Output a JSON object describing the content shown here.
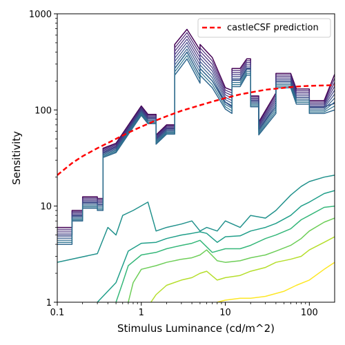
{
  "chart_data": {
    "type": "line",
    "xlabel": "Stimulus Luminance (cd/m^2)",
    "ylabel": "Sensitivity",
    "xscale": "log",
    "yscale": "log",
    "xlim": [
      0.1,
      200
    ],
    "ylim": [
      1,
      1000
    ],
    "x_ticks": [
      {
        "value": 0.1,
        "label": "0.1"
      },
      {
        "value": 1,
        "label": "1"
      },
      {
        "value": 10,
        "label": "10"
      },
      {
        "value": 100,
        "label": "100"
      }
    ],
    "y_ticks": [
      {
        "value": 1,
        "label": "1"
      },
      {
        "value": 10,
        "label": "10"
      },
      {
        "value": 100,
        "label": "100"
      },
      {
        "value": 1000,
        "label": "1000"
      }
    ],
    "legend": {
      "placement": "top-right",
      "entries": [
        {
          "label": "castleCSF prediction",
          "color": "#ff0000",
          "style": "dashed"
        }
      ]
    },
    "series": [
      {
        "name": "castleCSF prediction",
        "color": "#ff0000",
        "style": "dashed",
        "x": [
          0.1,
          0.15,
          0.2,
          0.3,
          0.5,
          0.7,
          1,
          1.5,
          2,
          3,
          5,
          7,
          10,
          15,
          20,
          30,
          50,
          70,
          100,
          150,
          200
        ],
        "y": [
          21,
          28,
          33,
          40,
          50,
          58,
          67,
          78,
          86,
          98,
          112,
          122,
          133,
          145,
          152,
          162,
          170,
          175,
          178,
          180,
          181
        ]
      }
    ],
    "contour_frontier": {
      "x": [
        0.1,
        0.15,
        0.15,
        0.2,
        0.2,
        0.3,
        0.3,
        0.35,
        0.35,
        0.5,
        1,
        1.2,
        1.5,
        1.5,
        2,
        2.5,
        2.5,
        3.5,
        5,
        5,
        7,
        10,
        12,
        12,
        15,
        18,
        20,
        20,
        25,
        25,
        40,
        40,
        60,
        70,
        100,
        100,
        150,
        200
      ],
      "y": [
        6,
        6,
        9,
        9,
        12.5,
        12.5,
        12,
        12,
        40,
        45,
        110,
        90,
        90,
        55,
        70,
        70,
        300,
        450,
        250,
        300,
        220,
        130,
        120,
        230,
        230,
        300,
        300,
        140,
        140,
        70,
        120,
        220,
        220,
        150,
        150,
        120,
        120,
        130
      ]
    },
    "contour_levels": [
      {
        "color": "#440154",
        "x": [
          0.1,
          0.15,
          0.15,
          0.2,
          0.2,
          0.3,
          0.3,
          0.35,
          0.35,
          0.5,
          1,
          1.2,
          1.5,
          1.5,
          2,
          2.5,
          2.5,
          3.5,
          5,
          5,
          7,
          10,
          12,
          12,
          15,
          18,
          20,
          20,
          25,
          25,
          40,
          40,
          60,
          70,
          100,
          100,
          150,
          200
        ],
        "y": [
          6,
          6,
          9,
          9,
          12.5,
          12.5,
          12,
          12,
          40,
          45,
          110,
          90,
          90,
          55,
          70,
          70,
          480,
          690,
          420,
          480,
          350,
          170,
          160,
          270,
          270,
          340,
          340,
          140,
          140,
          75,
          150,
          240,
          240,
          165,
          165,
          125,
          125,
          235
        ]
      },
      {
        "color": "#3e4a89",
        "x": [
          0.1,
          0.15,
          0.15,
          0.2,
          0.2,
          0.3,
          0.3,
          0.35,
          0.35,
          0.5,
          1,
          1.2,
          1.5,
          1.5,
          2,
          2.5,
          2.5,
          3.5,
          5,
          5,
          7,
          10,
          12,
          12,
          15,
          18,
          20,
          20,
          25,
          25,
          40,
          40,
          60,
          70,
          100,
          100,
          150,
          200
        ],
        "y": [
          5,
          5,
          8,
          8,
          11,
          11,
          10.5,
          10.5,
          36,
          41,
          100,
          82,
          82,
          50,
          64,
          64,
          270,
          400,
          225,
          270,
          200,
          120,
          108,
          205,
          205,
          270,
          270,
          125,
          125,
          63,
          108,
          198,
          198,
          135,
          135,
          108,
          108,
          117
        ]
      },
      {
        "color": "#31688e",
        "x": [
          0.1,
          0.15,
          0.15,
          0.2,
          0.2,
          0.3,
          0.3,
          0.35,
          0.35,
          0.5,
          1,
          1.2,
          1.5,
          1.5,
          2,
          2.5,
          2.5,
          3.5,
          5,
          5,
          7,
          10,
          12,
          12,
          15,
          18,
          20,
          20,
          25,
          25,
          40,
          40,
          60,
          70,
          100,
          100,
          150,
          200
        ],
        "y": [
          4,
          4,
          7,
          7,
          9.5,
          9.5,
          9,
          9,
          32,
          36,
          88,
          72,
          72,
          44,
          56,
          56,
          230,
          340,
          190,
          230,
          170,
          102,
          92,
          175,
          175,
          230,
          230,
          108,
          108,
          55,
          92,
          170,
          170,
          115,
          115,
          92,
          92,
          100
        ]
      },
      {
        "color": "#21918c",
        "x": [
          0.1,
          0.3,
          0.4,
          0.5,
          0.6,
          0.8,
          1.2,
          1.5,
          2,
          3,
          4,
          5,
          6,
          8,
          10,
          15,
          20,
          30,
          40,
          60,
          80,
          100,
          150,
          200
        ],
        "y": [
          2.6,
          3.2,
          6,
          5,
          8,
          9,
          11,
          5.5,
          6,
          6.5,
          7,
          5.5,
          6,
          5.5,
          7,
          6,
          8,
          7.5,
          9,
          13,
          16,
          18,
          20,
          21
        ]
      },
      {
        "color": "#1f9e89",
        "x": [
          0.3,
          0.5,
          0.7,
          1,
          1.5,
          2,
          3,
          4,
          5,
          6,
          8,
          10,
          15,
          20,
          30,
          40,
          60,
          80,
          100,
          150,
          200
        ],
        "y": [
          1,
          1.6,
          3.4,
          4.1,
          4.2,
          4.6,
          5,
          5.2,
          5.4,
          5.2,
          4.2,
          4.8,
          4.9,
          5.5,
          6,
          6.6,
          8,
          10,
          11,
          13.5,
          14.5
        ]
      },
      {
        "color": "#35b779",
        "x": [
          0.5,
          0.6,
          0.7,
          1,
          1.5,
          2,
          3,
          4,
          5,
          7,
          10,
          15,
          20,
          30,
          40,
          60,
          80,
          100,
          150,
          200
        ],
        "y": [
          1,
          1.6,
          2.4,
          3.1,
          3.3,
          3.6,
          3.9,
          4.1,
          4.4,
          3.3,
          3.6,
          3.6,
          3.9,
          4.6,
          5,
          5.8,
          7.2,
          8,
          9.7,
          10
        ]
      },
      {
        "color": "#6ece58",
        "x": [
          0.7,
          0.8,
          1,
          1.5,
          2,
          3,
          4,
          5,
          6,
          8,
          10,
          15,
          20,
          30,
          40,
          60,
          80,
          100,
          150,
          200
        ],
        "y": [
          1,
          1.6,
          2.2,
          2.4,
          2.6,
          2.8,
          2.9,
          3.1,
          3.5,
          2.7,
          2.6,
          2.7,
          2.9,
          3.1,
          3.4,
          3.9,
          4.6,
          5.5,
          6.8,
          7.5
        ]
      },
      {
        "color": "#b5de2b",
        "x": [
          1.3,
          1.5,
          2,
          3,
          4,
          5,
          6,
          8,
          10,
          15,
          20,
          30,
          40,
          60,
          80,
          100,
          150,
          200
        ],
        "y": [
          1,
          1.2,
          1.5,
          1.7,
          1.8,
          2,
          2.1,
          1.7,
          1.8,
          1.9,
          2.1,
          2.3,
          2.6,
          2.8,
          3,
          3.5,
          4.2,
          4.8
        ]
      },
      {
        "color": "#fde725",
        "x": [
          8,
          10,
          15,
          20,
          30,
          50,
          70,
          100,
          150,
          200
        ],
        "y": [
          1,
          1.05,
          1.1,
          1.1,
          1.15,
          1.3,
          1.5,
          1.7,
          2.2,
          2.6
        ]
      }
    ]
  }
}
